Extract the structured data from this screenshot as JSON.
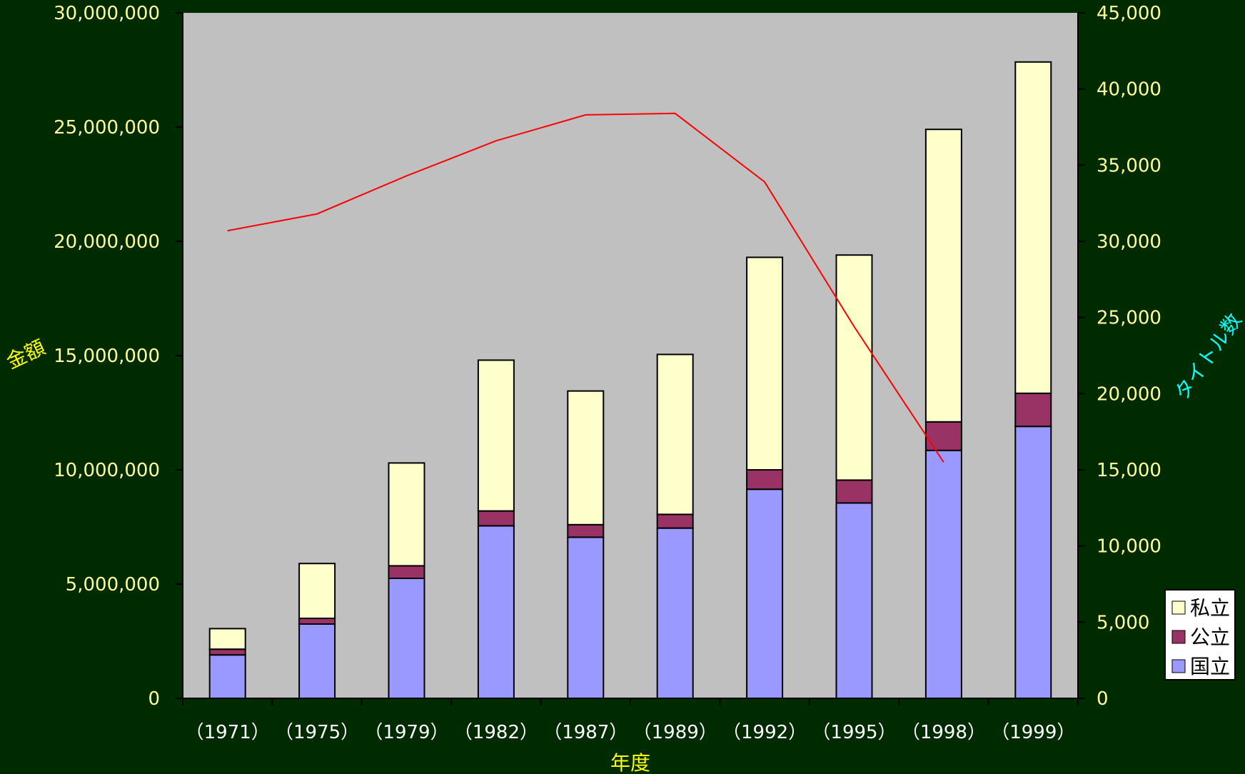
{
  "chart_data": {
    "type": "bar",
    "stacked": true,
    "categories": [
      "（1971）",
      "（1975）",
      "（1979）",
      "（1982）",
      "（1987）",
      "（1989）",
      "（1992）",
      "（1995）",
      "（1998）",
      "（1999）"
    ],
    "series": [
      {
        "name": "国立",
        "axis": "left",
        "type": "bar",
        "color": "#9999ff",
        "values": [
          1900000,
          3250000,
          5250000,
          7550000,
          7050000,
          7450000,
          9150000,
          8550000,
          10850000,
          11900000
        ]
      },
      {
        "name": "公立",
        "axis": "left",
        "type": "bar",
        "color": "#993366",
        "values": [
          250000,
          250000,
          550000,
          650000,
          550000,
          600000,
          850000,
          1000000,
          1250000,
          1450000
        ]
      },
      {
        "name": "私立",
        "axis": "left",
        "type": "bar",
        "color": "#ffffcc",
        "values": [
          900000,
          2400000,
          4500000,
          6600000,
          5850000,
          7000000,
          9300000,
          9850000,
          12800000,
          14500000
        ]
      },
      {
        "axis": "right",
        "type": "line",
        "color": "#ff0000",
        "values": [
          30700,
          31800,
          34300,
          36600,
          38300,
          38400,
          33900,
          24400,
          15500,
          null
        ]
      }
    ],
    "ylabel": "金額",
    "y2label": "タイトル数",
    "xlabel": "年度",
    "ylim": [
      0,
      30000000
    ],
    "y2lim": [
      0,
      45000
    ],
    "yticks": [
      "0",
      "5,000,000",
      "10,000,000",
      "15,000,000",
      "20,000,000",
      "25,000,000",
      "30,000,000"
    ],
    "y2ticks": [
      "0",
      "5,000",
      "10,000",
      "15,000",
      "20,000",
      "25,000",
      "30,000",
      "35,000",
      "40,000",
      "45,000"
    ],
    "legend": {
      "position": "right",
      "entries": [
        "私立",
        "公立",
        "国立"
      ]
    },
    "colors": {
      "page_background": "#002a00",
      "plot_background": "#c0c0c0",
      "left_axis_text": "#ffff99",
      "right_title": "#00ffff",
      "x_tick_text": "#ffffff",
      "x_title": "#ffff00",
      "line": "#ff0000"
    }
  }
}
